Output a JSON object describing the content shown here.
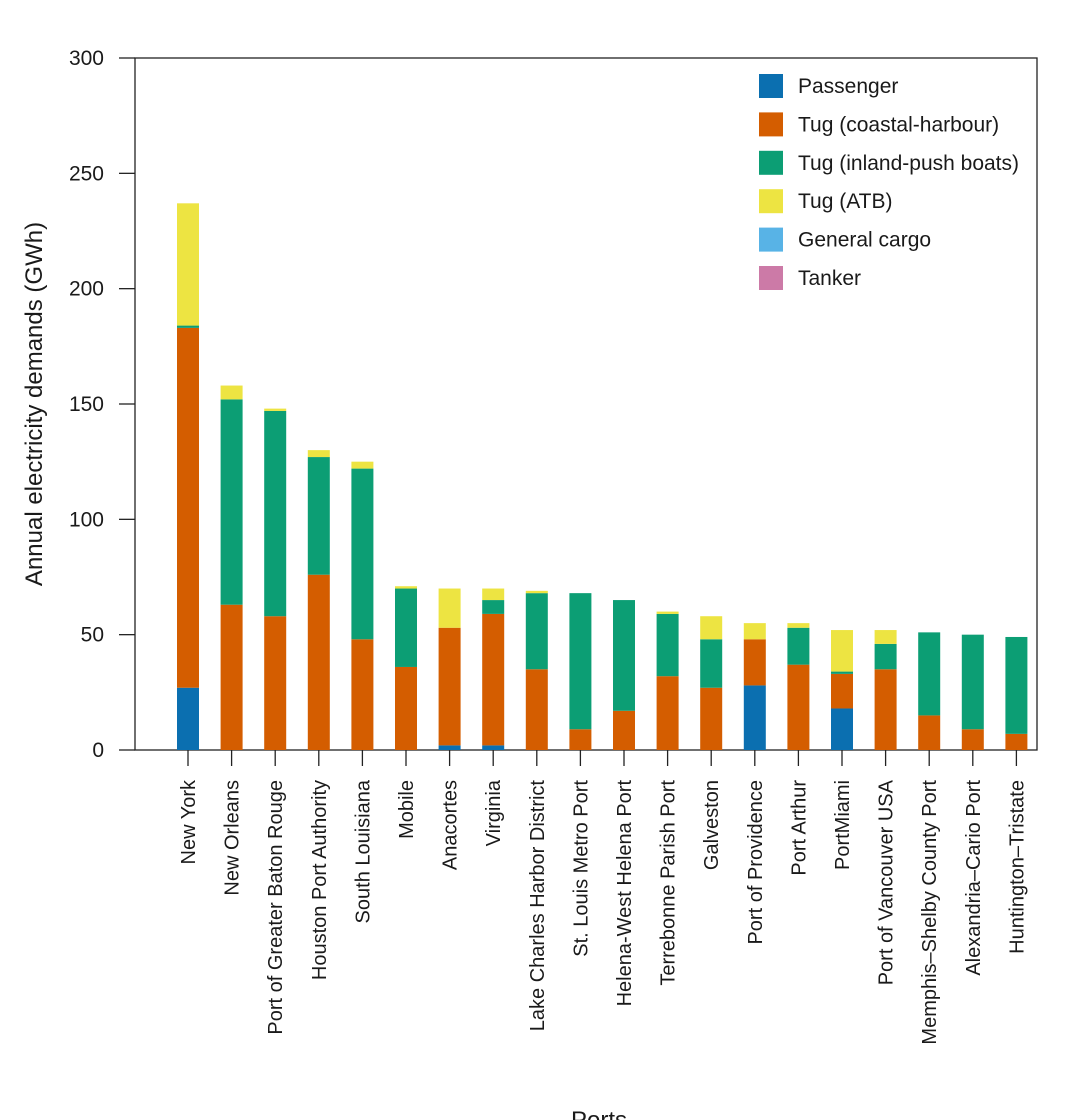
{
  "chart_data": {
    "type": "bar",
    "stacked": true,
    "title": "",
    "xlabel": "Ports",
    "ylabel": "Annual electricity demands (GWh)",
    "ylim": [
      0,
      300
    ],
    "yticks": [
      0,
      50,
      100,
      150,
      200,
      250,
      300
    ],
    "grid": false,
    "legend_position": "top-right",
    "categories": [
      "New York",
      "New Orleans",
      "Port of Greater Baton Rouge",
      "Houston Port Authority",
      "South Louisiana",
      "Mobile",
      "Anacortes",
      "Virginia",
      "Lake Charles Harbor District",
      "St. Louis Metro Port",
      "Helena-West Helena Port",
      "Terrebonne Parish Port",
      "Galveston",
      "Port of Providence",
      "Port Arthur",
      "PortMiami",
      "Port of Vancouver USA",
      "Memphis–Shelby County Port",
      "Alexandria–Cario Port",
      "Huntington–Tristate"
    ],
    "series": [
      {
        "name": "Passenger",
        "color": "#0b6fb0",
        "values": [
          27,
          0,
          0,
          0,
          0,
          0,
          2,
          2,
          0,
          0,
          0,
          0,
          0,
          28,
          0,
          18,
          0,
          0,
          0,
          0
        ]
      },
      {
        "name": "Tug (coastal-harbour)",
        "color": "#d45d00",
        "values": [
          156,
          63,
          58,
          76,
          48,
          36,
          51,
          57,
          35,
          9,
          17,
          32,
          27,
          20,
          37,
          15,
          35,
          15,
          9,
          7
        ]
      },
      {
        "name": "Tug (inland-push boats)",
        "color": "#0c9e74",
        "values": [
          1,
          89,
          89,
          51,
          74,
          34,
          0,
          6,
          33,
          59,
          48,
          27,
          21,
          0,
          16,
          1,
          11,
          36,
          41,
          42
        ]
      },
      {
        "name": "Tug (ATB)",
        "color": "#ede442",
        "values": [
          53,
          6,
          1,
          3,
          3,
          1,
          17,
          5,
          1,
          0,
          0,
          1,
          10,
          7,
          2,
          18,
          6,
          0,
          0,
          0
        ]
      },
      {
        "name": "General cargo",
        "color": "#58b3e6",
        "values": [
          0,
          0,
          0,
          0,
          0,
          0,
          0,
          0,
          0,
          0,
          0,
          0,
          0,
          0,
          0,
          0,
          0,
          0,
          0,
          0
        ]
      },
      {
        "name": "Tanker",
        "color": "#cc7aa7",
        "values": [
          0,
          0,
          0,
          0,
          0,
          0,
          0,
          0,
          0,
          0,
          0,
          0,
          0,
          0,
          0,
          0,
          0,
          0,
          0,
          0
        ]
      }
    ]
  }
}
